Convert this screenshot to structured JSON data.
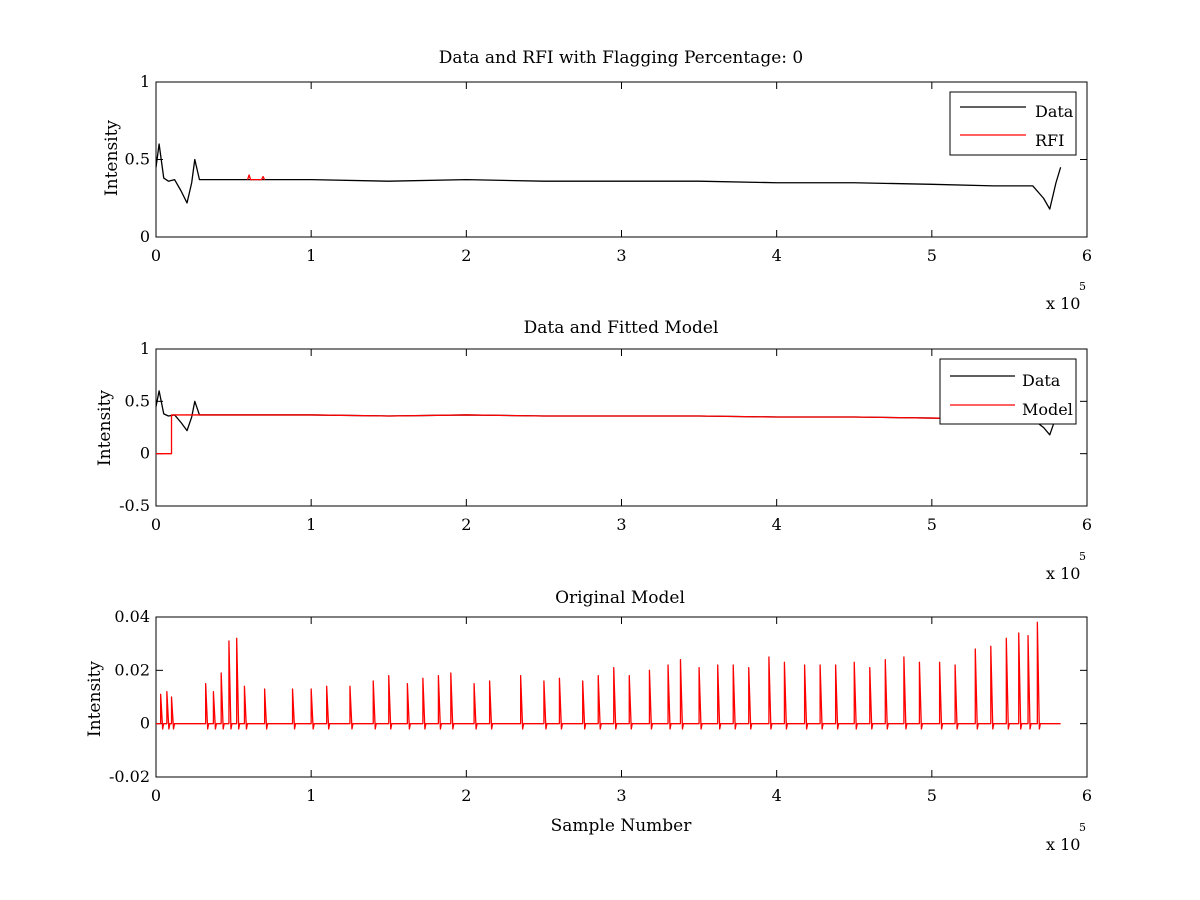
{
  "chart_data": [
    {
      "type": "line",
      "title": "Data and RFI with Flagging Percentage: 0",
      "xlabel": "",
      "ylabel": "Intensity",
      "xlim": [
        0,
        600000
      ],
      "ylim": [
        0,
        1
      ],
      "xticks": [
        0,
        1,
        2,
        3,
        4,
        5,
        6
      ],
      "xtick_labels": [
        "0",
        "1",
        "2",
        "3",
        "4",
        "5",
        "6"
      ],
      "yticks": [
        0,
        0.5,
        1
      ],
      "ytick_labels": [
        "0",
        "0.5",
        "1"
      ],
      "x_exponent_label": "x 10",
      "x_exponent": "5",
      "legend_position": "top-right",
      "grid": false,
      "series": [
        {
          "name": "Data",
          "color": "#000000",
          "x": [
            0,
            2000,
            5000,
            8000,
            12000,
            16000,
            20000,
            23000,
            25000,
            28000,
            40000,
            60000,
            100000,
            150000,
            200000,
            250000,
            300000,
            350000,
            400000,
            450000,
            500000,
            540000,
            565000,
            572000,
            576000,
            580000,
            583000
          ],
          "y": [
            0.45,
            0.6,
            0.38,
            0.36,
            0.37,
            0.3,
            0.22,
            0.35,
            0.5,
            0.37,
            0.37,
            0.37,
            0.37,
            0.36,
            0.37,
            0.36,
            0.36,
            0.36,
            0.35,
            0.35,
            0.34,
            0.33,
            0.33,
            0.25,
            0.18,
            0.35,
            0.45
          ]
        },
        {
          "name": "RFI",
          "color": "#ff0000",
          "x": [
            59000,
            60000,
            61000,
            68000,
            69000,
            70000
          ],
          "y": [
            0.37,
            0.4,
            0.37,
            0.37,
            0.39,
            0.37
          ]
        }
      ]
    },
    {
      "type": "line",
      "title": "Data and Fitted Model",
      "xlabel": "",
      "ylabel": "Intensity",
      "xlim": [
        0,
        600000
      ],
      "ylim": [
        -0.5,
        1
      ],
      "xticks": [
        0,
        1,
        2,
        3,
        4,
        5,
        6
      ],
      "xtick_labels": [
        "0",
        "1",
        "2",
        "3",
        "4",
        "5",
        "6"
      ],
      "yticks": [
        -0.5,
        0,
        0.5,
        1
      ],
      "ytick_labels": [
        "-0.5",
        "0",
        "0.5",
        "1"
      ],
      "x_exponent_label": "x 10",
      "x_exponent": "5",
      "legend_position": "top-right",
      "grid": false,
      "series": [
        {
          "name": "Data",
          "color": "#000000",
          "x": [
            0,
            2000,
            5000,
            8000,
            12000,
            16000,
            20000,
            23000,
            25000,
            28000,
            40000,
            60000,
            100000,
            150000,
            200000,
            250000,
            300000,
            350000,
            400000,
            450000,
            500000,
            540000,
            565000,
            572000,
            576000,
            580000,
            583000
          ],
          "y": [
            0.45,
            0.6,
            0.38,
            0.36,
            0.37,
            0.3,
            0.22,
            0.35,
            0.5,
            0.37,
            0.37,
            0.37,
            0.37,
            0.36,
            0.37,
            0.36,
            0.36,
            0.36,
            0.35,
            0.35,
            0.34,
            0.33,
            0.33,
            0.25,
            0.18,
            0.35,
            0.45
          ]
        },
        {
          "name": "Model",
          "color": "#ff0000",
          "x": [
            0,
            10000,
            10001,
            40000,
            100000,
            150000,
            200000,
            250000,
            300000,
            350000,
            400000,
            450000,
            500000,
            560000
          ],
          "y": [
            0,
            0,
            0.37,
            0.37,
            0.37,
            0.36,
            0.37,
            0.36,
            0.36,
            0.36,
            0.35,
            0.35,
            0.34,
            0.33
          ]
        }
      ]
    },
    {
      "type": "line",
      "title": "Original Model",
      "xlabel": "Sample Number",
      "ylabel": "Intensity",
      "xlim": [
        0,
        600000
      ],
      "ylim": [
        -0.02,
        0.04
      ],
      "xticks": [
        0,
        1,
        2,
        3,
        4,
        5,
        6
      ],
      "xtick_labels": [
        "0",
        "1",
        "2",
        "3",
        "4",
        "5",
        "6"
      ],
      "yticks": [
        -0.02,
        0,
        0.02,
        0.04
      ],
      "ytick_labels": [
        "-0.02",
        "0",
        "0.02",
        "0.04"
      ],
      "x_exponent_label": "x 10",
      "x_exponent": "5",
      "grid": false,
      "series": [
        {
          "name": "",
          "color": "#ff0000",
          "x": [
            3000,
            7000,
            10000,
            32000,
            37000,
            42000,
            47000,
            52000,
            57000,
            70000,
            88000,
            100000,
            110000,
            125000,
            140000,
            150000,
            162000,
            172000,
            182000,
            190000,
            205000,
            215000,
            235000,
            250000,
            260000,
            275000,
            285000,
            295000,
            305000,
            318000,
            330000,
            338000,
            350000,
            362000,
            372000,
            382000,
            395000,
            405000,
            418000,
            428000,
            438000,
            450000,
            460000,
            470000,
            482000,
            492000,
            505000,
            515000,
            528000,
            538000,
            548000,
            556000,
            562000,
            568000
          ],
          "y": [
            0.011,
            0.012,
            0.01,
            0.015,
            0.012,
            0.019,
            0.031,
            0.032,
            0.014,
            0.013,
            0.013,
            0.013,
            0.014,
            0.014,
            0.016,
            0.018,
            0.015,
            0.017,
            0.018,
            0.019,
            0.015,
            0.016,
            0.018,
            0.016,
            0.017,
            0.016,
            0.018,
            0.021,
            0.018,
            0.02,
            0.022,
            0.024,
            0.021,
            0.022,
            0.022,
            0.021,
            0.025,
            0.023,
            0.022,
            0.022,
            0.022,
            0.023,
            0.021,
            0.024,
            0.025,
            0.023,
            0.023,
            0.022,
            0.028,
            0.029,
            0.032,
            0.034,
            0.033,
            0.038
          ]
        }
      ]
    }
  ]
}
